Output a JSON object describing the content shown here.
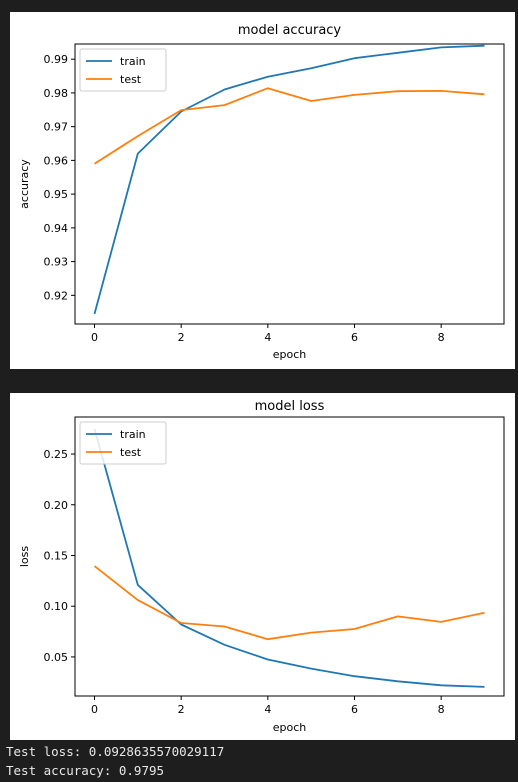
{
  "console": {
    "line1": "Test loss: 0.0928635570029117",
    "line2": "Test accuracy: 0.9795"
  },
  "chart_data": [
    {
      "type": "line",
      "title": "model accuracy",
      "xlabel": "epoch",
      "ylabel": "accuracy",
      "x": [
        0,
        1,
        2,
        3,
        4,
        5,
        6,
        7,
        8,
        9
      ],
      "xlim": [
        -0.45,
        9.45
      ],
      "ylim": [
        0.9115,
        0.9945
      ],
      "xticks": [
        0,
        2,
        4,
        6,
        8
      ],
      "xtick_labels": [
        "0",
        "2",
        "4",
        "6",
        "8"
      ],
      "yticks": [
        0.92,
        0.93,
        0.94,
        0.95,
        0.96,
        0.97,
        0.98,
        0.99
      ],
      "ytick_labels": [
        "0.92",
        "0.93",
        "0.94",
        "0.95",
        "0.96",
        "0.97",
        "0.98",
        "0.99"
      ],
      "legend_position": "upper-left",
      "series": [
        {
          "name": "train",
          "color": "#1f77b4",
          "values": [
            0.9145,
            0.962,
            0.9745,
            0.981,
            0.9848,
            0.9873,
            0.9903,
            0.9919,
            0.9935,
            0.994
          ]
        },
        {
          "name": "test",
          "color": "#ff7f0e",
          "values": [
            0.959,
            0.9672,
            0.9749,
            0.9764,
            0.9814,
            0.9776,
            0.9794,
            0.9805,
            0.9806,
            0.9796
          ]
        }
      ]
    },
    {
      "type": "line",
      "title": "model loss",
      "xlabel": "epoch",
      "ylabel": "loss",
      "x": [
        0,
        1,
        2,
        3,
        4,
        5,
        6,
        7,
        8,
        9
      ],
      "xlim": [
        -0.45,
        9.45
      ],
      "ylim": [
        0.0115,
        0.2865
      ],
      "xticks": [
        0,
        2,
        4,
        6,
        8
      ],
      "xtick_labels": [
        "0",
        "2",
        "4",
        "6",
        "8"
      ],
      "yticks": [
        0.05,
        0.1,
        0.15,
        0.2,
        0.25
      ],
      "ytick_labels": [
        "0.05",
        "0.10",
        "0.15",
        "0.20",
        "0.25"
      ],
      "legend_position": "upper-left",
      "series": [
        {
          "name": "train",
          "color": "#1f77b4",
          "values": [
            0.275,
            0.121,
            0.082,
            0.062,
            0.0475,
            0.0385,
            0.031,
            0.026,
            0.022,
            0.0205
          ]
        },
        {
          "name": "test",
          "color": "#ff7f0e",
          "values": [
            0.1395,
            0.106,
            0.0835,
            0.08,
            0.0675,
            0.074,
            0.0775,
            0.09,
            0.0845,
            0.0935
          ]
        }
      ]
    }
  ]
}
